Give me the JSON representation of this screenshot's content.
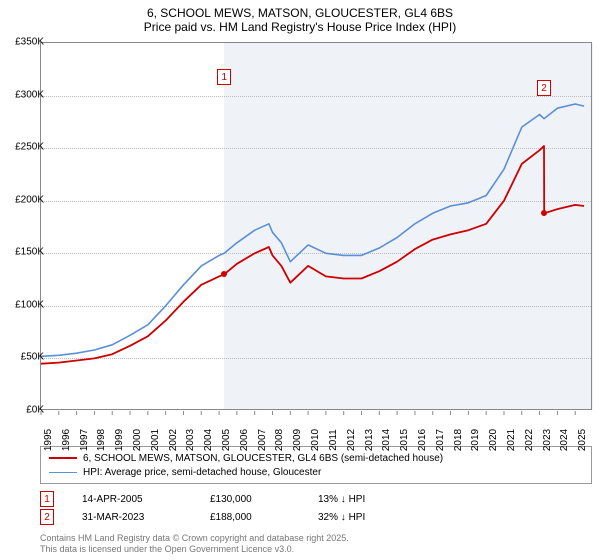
{
  "title": {
    "line1": "6, SCHOOL MEWS, MATSON, GLOUCESTER, GL4 6BS",
    "line2": "Price paid vs. HM Land Registry's House Price Index (HPI)",
    "fontsize": 12
  },
  "chart": {
    "type": "line",
    "background_color": "#ffffff",
    "grid_color": "#bbbbbb",
    "border_color": "#888888",
    "shade_color": "rgba(120,160,200,0.12)",
    "xlim": [
      1995,
      2026
    ],
    "ylim": [
      0,
      350000
    ],
    "yticks": [
      0,
      50000,
      100000,
      150000,
      200000,
      250000,
      300000,
      350000
    ],
    "ytick_labels": [
      "£0K",
      "£50K",
      "£100K",
      "£150K",
      "£200K",
      "£250K",
      "£300K",
      "£350K"
    ],
    "xticks": [
      1995,
      1996,
      1997,
      1998,
      1999,
      2000,
      2001,
      2002,
      2003,
      2004,
      2005,
      2006,
      2007,
      2008,
      2009,
      2010,
      2011,
      2012,
      2013,
      2014,
      2015,
      2016,
      2017,
      2018,
      2019,
      2020,
      2021,
      2022,
      2023,
      2024,
      2025
    ],
    "shade_ranges": [
      {
        "from": 2005.29,
        "to": 2023.25
      },
      {
        "from": 2023.25,
        "to": 2026
      }
    ],
    "series": [
      {
        "id": "hpi",
        "label": "HPI: Average price, semi-detached house, Gloucester",
        "color": "#5b8fd6",
        "line_width": 1.6,
        "x": [
          1995,
          1996,
          1997,
          1998,
          1999,
          2000,
          2001,
          2002,
          2003,
          2004,
          2005,
          2005.29,
          2006,
          2007,
          2007.8,
          2008,
          2008.5,
          2009,
          2009.5,
          2010,
          2011,
          2012,
          2013,
          2014,
          2015,
          2016,
          2017,
          2018,
          2019,
          2020,
          2021,
          2022,
          2023,
          2023.25,
          2024,
          2025,
          2025.5
        ],
        "y": [
          52000,
          53000,
          55000,
          58000,
          63000,
          72000,
          82000,
          100000,
          120000,
          138000,
          148000,
          150000,
          160000,
          172000,
          178000,
          170000,
          160000,
          142000,
          150000,
          158000,
          150000,
          148000,
          148000,
          155000,
          165000,
          178000,
          188000,
          195000,
          198000,
          205000,
          230000,
          270000,
          282000,
          278000,
          288000,
          292000,
          290000
        ]
      },
      {
        "id": "property",
        "label": "6, SCHOOL MEWS, MATSON, GLOUCESTER, GL4 6BS (semi-detached house)",
        "color": "#cc0000",
        "line_width": 1.8,
        "x": [
          1995,
          1996,
          1997,
          1998,
          1999,
          2000,
          2001,
          2002,
          2003,
          2004,
          2005,
          2005.29,
          2006,
          2007,
          2007.8,
          2008,
          2008.5,
          2009,
          2009.5,
          2010,
          2011,
          2012,
          2013,
          2014,
          2015,
          2016,
          2017,
          2018,
          2019,
          2020,
          2021,
          2022,
          2023,
          2023.25,
          2023.26,
          2024,
          2025,
          2025.5
        ],
        "y": [
          45000,
          46000,
          48000,
          50000,
          54000,
          62000,
          71000,
          86000,
          104000,
          120000,
          128000,
          130000,
          140000,
          150000,
          156000,
          148000,
          138000,
          122000,
          130000,
          138000,
          128000,
          126000,
          126000,
          133000,
          142000,
          154000,
          163000,
          168000,
          172000,
          178000,
          200000,
          235000,
          248000,
          252000,
          188000,
          192000,
          196000,
          195000
        ]
      }
    ],
    "sale_points": [
      {
        "x": 2005.29,
        "y": 130000
      },
      {
        "x": 2023.25,
        "y": 188000
      }
    ],
    "annotations": [
      {
        "id": 1,
        "label": "1",
        "x": 2005.29,
        "y_anchor": 325000
      },
      {
        "id": 2,
        "label": "2",
        "x": 2023.25,
        "y_anchor": 315000
      }
    ]
  },
  "legend": {
    "items": [
      {
        "color": "#cc0000",
        "width": 2,
        "label": "6, SCHOOL MEWS, MATSON, GLOUCESTER, GL4 6BS (semi-detached house)"
      },
      {
        "color": "#5b8fd6",
        "width": 1.5,
        "label": "HPI: Average price, semi-detached house, Gloucester"
      }
    ]
  },
  "marker_rows": [
    {
      "num": "1",
      "date": "14-APR-2005",
      "price": "£130,000",
      "delta": "13% ↓ HPI"
    },
    {
      "num": "2",
      "date": "31-MAR-2023",
      "price": "£188,000",
      "delta": "32% ↓ HPI"
    }
  ],
  "footer": {
    "line1": "Contains HM Land Registry data © Crown copyright and database right 2025.",
    "line2": "This data is licensed under the Open Government Licence v3.0."
  }
}
